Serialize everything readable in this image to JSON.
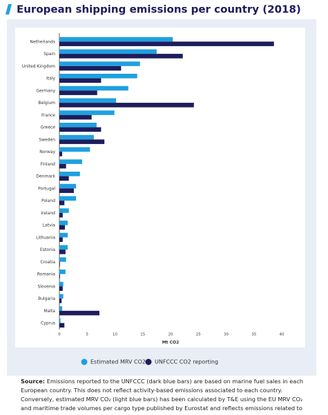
{
  "chart_data": {
    "type": "hbar",
    "title": "European shipping emissions per country (2018)",
    "categories": [
      "Netherlands",
      "Spain",
      "United Kingdom",
      "Italy",
      "Germany",
      "Belgium",
      "France",
      "Greece",
      "Sweden",
      "Norway",
      "Finland",
      "Denmark",
      "Portugal",
      "Poland",
      "Ireland",
      "Latvia",
      "Lithuania",
      "Estonia",
      "Croatia",
      "Romania",
      "Slovenia",
      "Bulgaria",
      "Malta",
      "Cyprus"
    ],
    "series": [
      {
        "name": "Estimated MRV CO2",
        "color": "#1fa0e0",
        "values": [
          20.4,
          17.5,
          14.5,
          14.0,
          12.4,
          10.2,
          9.9,
          6.7,
          6.2,
          5.5,
          4.1,
          3.7,
          3.0,
          3.0,
          1.7,
          1.5,
          1.5,
          1.5,
          1.2,
          1.1,
          0.7,
          0.7,
          0.5,
          0.2
        ]
      },
      {
        "name": "UNFCCC CO2 reporting",
        "color": "#1d1d5c",
        "values": [
          38.6,
          22.2,
          11.1,
          7.5,
          6.8,
          24.2,
          5.8,
          7.5,
          8.1,
          0.5,
          1.2,
          1.7,
          2.6,
          0.9,
          0.6,
          1.0,
          0.6,
          1.1,
          0.1,
          0.1,
          0.6,
          0.4,
          7.2,
          0.9
        ]
      }
    ],
    "xlim": [
      0,
      40
    ],
    "xticks": [
      0,
      5,
      10,
      15,
      20,
      25,
      30,
      35,
      40
    ],
    "xlabel": "Mt CO2",
    "source_label": "Source:",
    "source_text": "Emissions reported to the UNFCCC (dark blue bars) are based on marine fuel sales in each European country. This does not reflect activity-based emissions associated to each country. Conversely, estimated MRV CO₂ (light blue bars) has been calculated by T&E using the EU MRV CO₂ and maritime trade volumes per cargo type published by Eurostat and reflects emissions related to voyages to national sea ports."
  }
}
